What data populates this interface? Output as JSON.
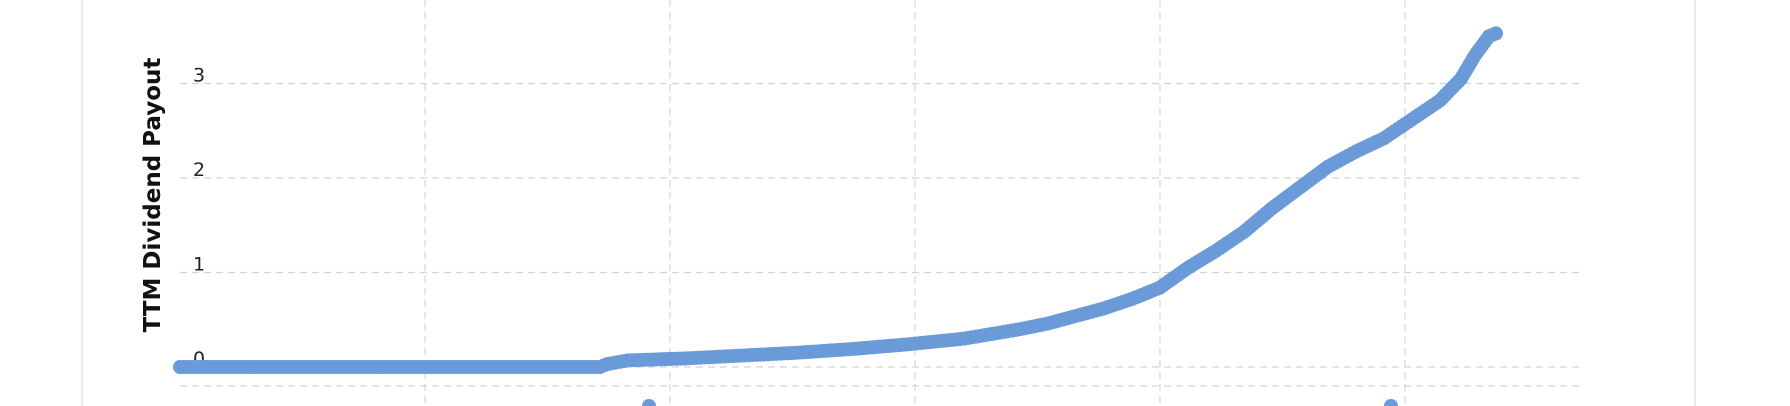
{
  "chart_data": {
    "type": "scatter",
    "ylabel": "TTM Dividend Payout",
    "xlabel": "",
    "yticks": [
      0,
      1,
      2,
      3
    ],
    "ylim": [
      -0.08,
      3.85
    ],
    "xlim": [
      0,
      100
    ],
    "x_gridlines": [
      17.5,
      35,
      52.5,
      70,
      87.5
    ],
    "grid": true,
    "marker_color": "#6a9ad8",
    "series": [
      {
        "points": [
          [
            0,
            0.0
          ],
          [
            30,
            0.0
          ],
          [
            30.5,
            0.03
          ],
          [
            32,
            0.07
          ],
          [
            36,
            0.09
          ],
          [
            40,
            0.12
          ],
          [
            44,
            0.15
          ],
          [
            48,
            0.19
          ],
          [
            52,
            0.24
          ],
          [
            56,
            0.3
          ],
          [
            58,
            0.35
          ],
          [
            60,
            0.4
          ],
          [
            62,
            0.46
          ],
          [
            64,
            0.54
          ],
          [
            66,
            0.62
          ],
          [
            68,
            0.72
          ],
          [
            70,
            0.84
          ],
          [
            72,
            1.05
          ],
          [
            74,
            1.23
          ],
          [
            76,
            1.43
          ],
          [
            78,
            1.68
          ],
          [
            80,
            1.9
          ],
          [
            82,
            2.12
          ],
          [
            84,
            2.28
          ],
          [
            86,
            2.42
          ],
          [
            88,
            2.62
          ],
          [
            90,
            2.82
          ],
          [
            91.5,
            3.05
          ],
          [
            92.5,
            3.3
          ],
          [
            93.5,
            3.5
          ],
          [
            94,
            3.53
          ]
        ]
      }
    ],
    "partial_markers": [
      {
        "x": 33.5,
        "y": -0.4
      },
      {
        "x": 86.5,
        "y": -0.4
      }
    ]
  }
}
